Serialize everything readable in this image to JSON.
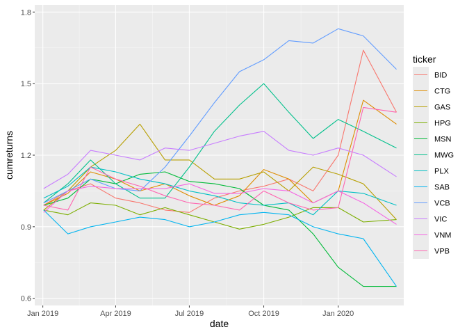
{
  "chart_data": {
    "type": "line",
    "xlabel": "date",
    "ylabel": "cumreturns",
    "ylim": [
      0.57,
      1.83
    ],
    "xlim": [
      "2018-12-22",
      "2020-03-22"
    ],
    "x_ticks": [
      {
        "date": "2019-01-01",
        "label": "Jan 2019"
      },
      {
        "date": "2019-04-01",
        "label": "Apr 2019"
      },
      {
        "date": "2019-07-01",
        "label": "Jul 2019"
      },
      {
        "date": "2019-10-01",
        "label": "Oct 2019"
      },
      {
        "date": "2020-01-01",
        "label": "Jan 2020"
      }
    ],
    "y_ticks": [
      0.6,
      0.9,
      1.2,
      1.5,
      1.8
    ],
    "y_tick_labels": [
      "0.6",
      "0.9",
      "1.2",
      "1.5",
      "1.8"
    ],
    "grid": true,
    "legend": {
      "title": "ticker",
      "placement": "right"
    },
    "x": [
      "2019-01-02",
      "2019-02-01",
      "2019-03-01",
      "2019-04-01",
      "2019-05-01",
      "2019-06-01",
      "2019-07-01",
      "2019-08-01",
      "2019-09-01",
      "2019-10-01",
      "2019-11-01",
      "2019-12-01",
      "2020-01-01",
      "2020-02-01",
      "2020-03-13"
    ],
    "series": [
      {
        "name": "BID",
        "color": "#F8766D",
        "values": [
          0.99,
          1.05,
          1.08,
          1.02,
          1.0,
          0.97,
          0.96,
          1.02,
          1.05,
          1.07,
          1.1,
          1.05,
          1.2,
          1.64,
          1.38
        ]
      },
      {
        "name": "CTG",
        "color": "#DE8C00",
        "values": [
          0.99,
          1.04,
          1.13,
          1.1,
          1.05,
          1.08,
          1.03,
          0.99,
          1.03,
          1.14,
          1.1,
          1.0,
          1.05,
          1.43,
          1.33
        ]
      },
      {
        "name": "GAS",
        "color": "#B79F00",
        "values": [
          0.97,
          1.05,
          1.15,
          1.22,
          1.33,
          1.18,
          1.18,
          1.1,
          1.1,
          1.13,
          1.05,
          1.15,
          1.12,
          1.08,
          0.93
        ]
      },
      {
        "name": "HPG",
        "color": "#7CAE00",
        "values": [
          0.97,
          0.95,
          1.0,
          0.99,
          0.95,
          0.98,
          0.95,
          0.92,
          0.89,
          0.91,
          0.94,
          0.98,
          0.98,
          0.92,
          0.93
        ]
      },
      {
        "name": "MSN",
        "color": "#00BA38",
        "values": [
          0.99,
          1.02,
          1.1,
          1.08,
          1.12,
          1.13,
          1.09,
          1.08,
          1.06,
          0.99,
          0.97,
          0.87,
          0.73,
          0.65,
          0.65
        ]
      },
      {
        "name": "MWG",
        "color": "#00C08B",
        "values": [
          1.0,
          1.08,
          1.18,
          1.08,
          1.02,
          1.02,
          1.15,
          1.3,
          1.41,
          1.5,
          1.38,
          1.27,
          1.35,
          1.3,
          1.23
        ]
      },
      {
        "name": "PLX",
        "color": "#00BFC4",
        "values": [
          1.02,
          1.07,
          1.15,
          1.13,
          1.1,
          1.08,
          1.05,
          1.03,
          1.0,
          0.99,
          1.0,
          0.95,
          1.05,
          1.04,
          0.99
        ]
      },
      {
        "name": "SAB",
        "color": "#00B4F0",
        "values": [
          0.97,
          0.87,
          0.9,
          0.92,
          0.94,
          0.93,
          0.9,
          0.92,
          0.95,
          0.96,
          0.95,
          0.9,
          0.87,
          0.85,
          0.65
        ]
      },
      {
        "name": "VCB",
        "color": "#619CFF",
        "values": [
          1.0,
          1.05,
          1.1,
          1.06,
          1.05,
          1.15,
          1.28,
          1.42,
          1.55,
          1.6,
          1.68,
          1.67,
          1.73,
          1.7,
          1.56
        ]
      },
      {
        "name": "VIC",
        "color": "#C77CFF",
        "values": [
          1.06,
          1.12,
          1.22,
          1.2,
          1.18,
          1.23,
          1.22,
          1.25,
          1.28,
          1.3,
          1.22,
          1.2,
          1.23,
          1.2,
          1.11
        ]
      },
      {
        "name": "VNM",
        "color": "#F564E3",
        "values": [
          0.96,
          1.05,
          1.07,
          1.06,
          1.06,
          1.06,
          1.08,
          1.04,
          1.04,
          1.06,
          1.05,
          1.0,
          1.05,
          1.0,
          0.91
        ]
      },
      {
        "name": "VPB",
        "color": "#FF64B0",
        "values": [
          0.99,
          0.97,
          1.15,
          1.1,
          1.07,
          1.03,
          1.0,
          0.99,
          0.97,
          1.05,
          1.0,
          0.97,
          0.98,
          1.4,
          1.38
        ]
      }
    ]
  },
  "colors": {
    "panel_background": "#EBEBEB",
    "grid_major": "#FFFFFF",
    "legend_key_background": "#EBEBEB"
  }
}
